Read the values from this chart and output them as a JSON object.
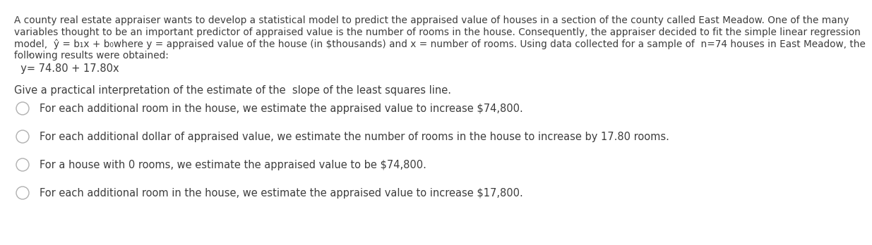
{
  "background_color": "#ffffff",
  "text_color": "#3d3d3d",
  "para_line1": "A county real estate appraiser wants to develop a statistical model to predict the appraised value of houses in a section of the county called East Meadow. One of the many",
  "para_line2": "variables thought to be an important predictor of appraised value is the number of rooms in the house. Consequently, the appraiser decided to fit the simple linear regression",
  "para_line3": "model,  ŷ = b₁x + b₀where y = appraised value of the house (in $thousands) and x = number of rooms. Using data collected for a sample of  n=74 houses in East Meadow, the",
  "para_line4": "following results were obtained:",
  "equation_prefix": "  ŷ= 74.80 + 17.80x",
  "equation_caret": "^",
  "question": "Give a practical interpretation of the estimate of the  slope of the least squares line.",
  "options": [
    "For each additional room in the house, we estimate the appraised value to increase $74,800.",
    "For each additional dollar of appraised value, we estimate the number of rooms in the house to increase by 17.80 rooms.",
    "For a house with 0 rooms, we estimate the appraised value to be $74,800.",
    "For each additional room in the house, we estimate the appraised value to increase $17,800."
  ],
  "font_size_para": 9.8,
  "font_size_equation": 10.5,
  "font_size_question": 10.5,
  "font_size_options": 10.5,
  "circle_color": "#b0b0b0",
  "circle_linewidth": 1.0
}
